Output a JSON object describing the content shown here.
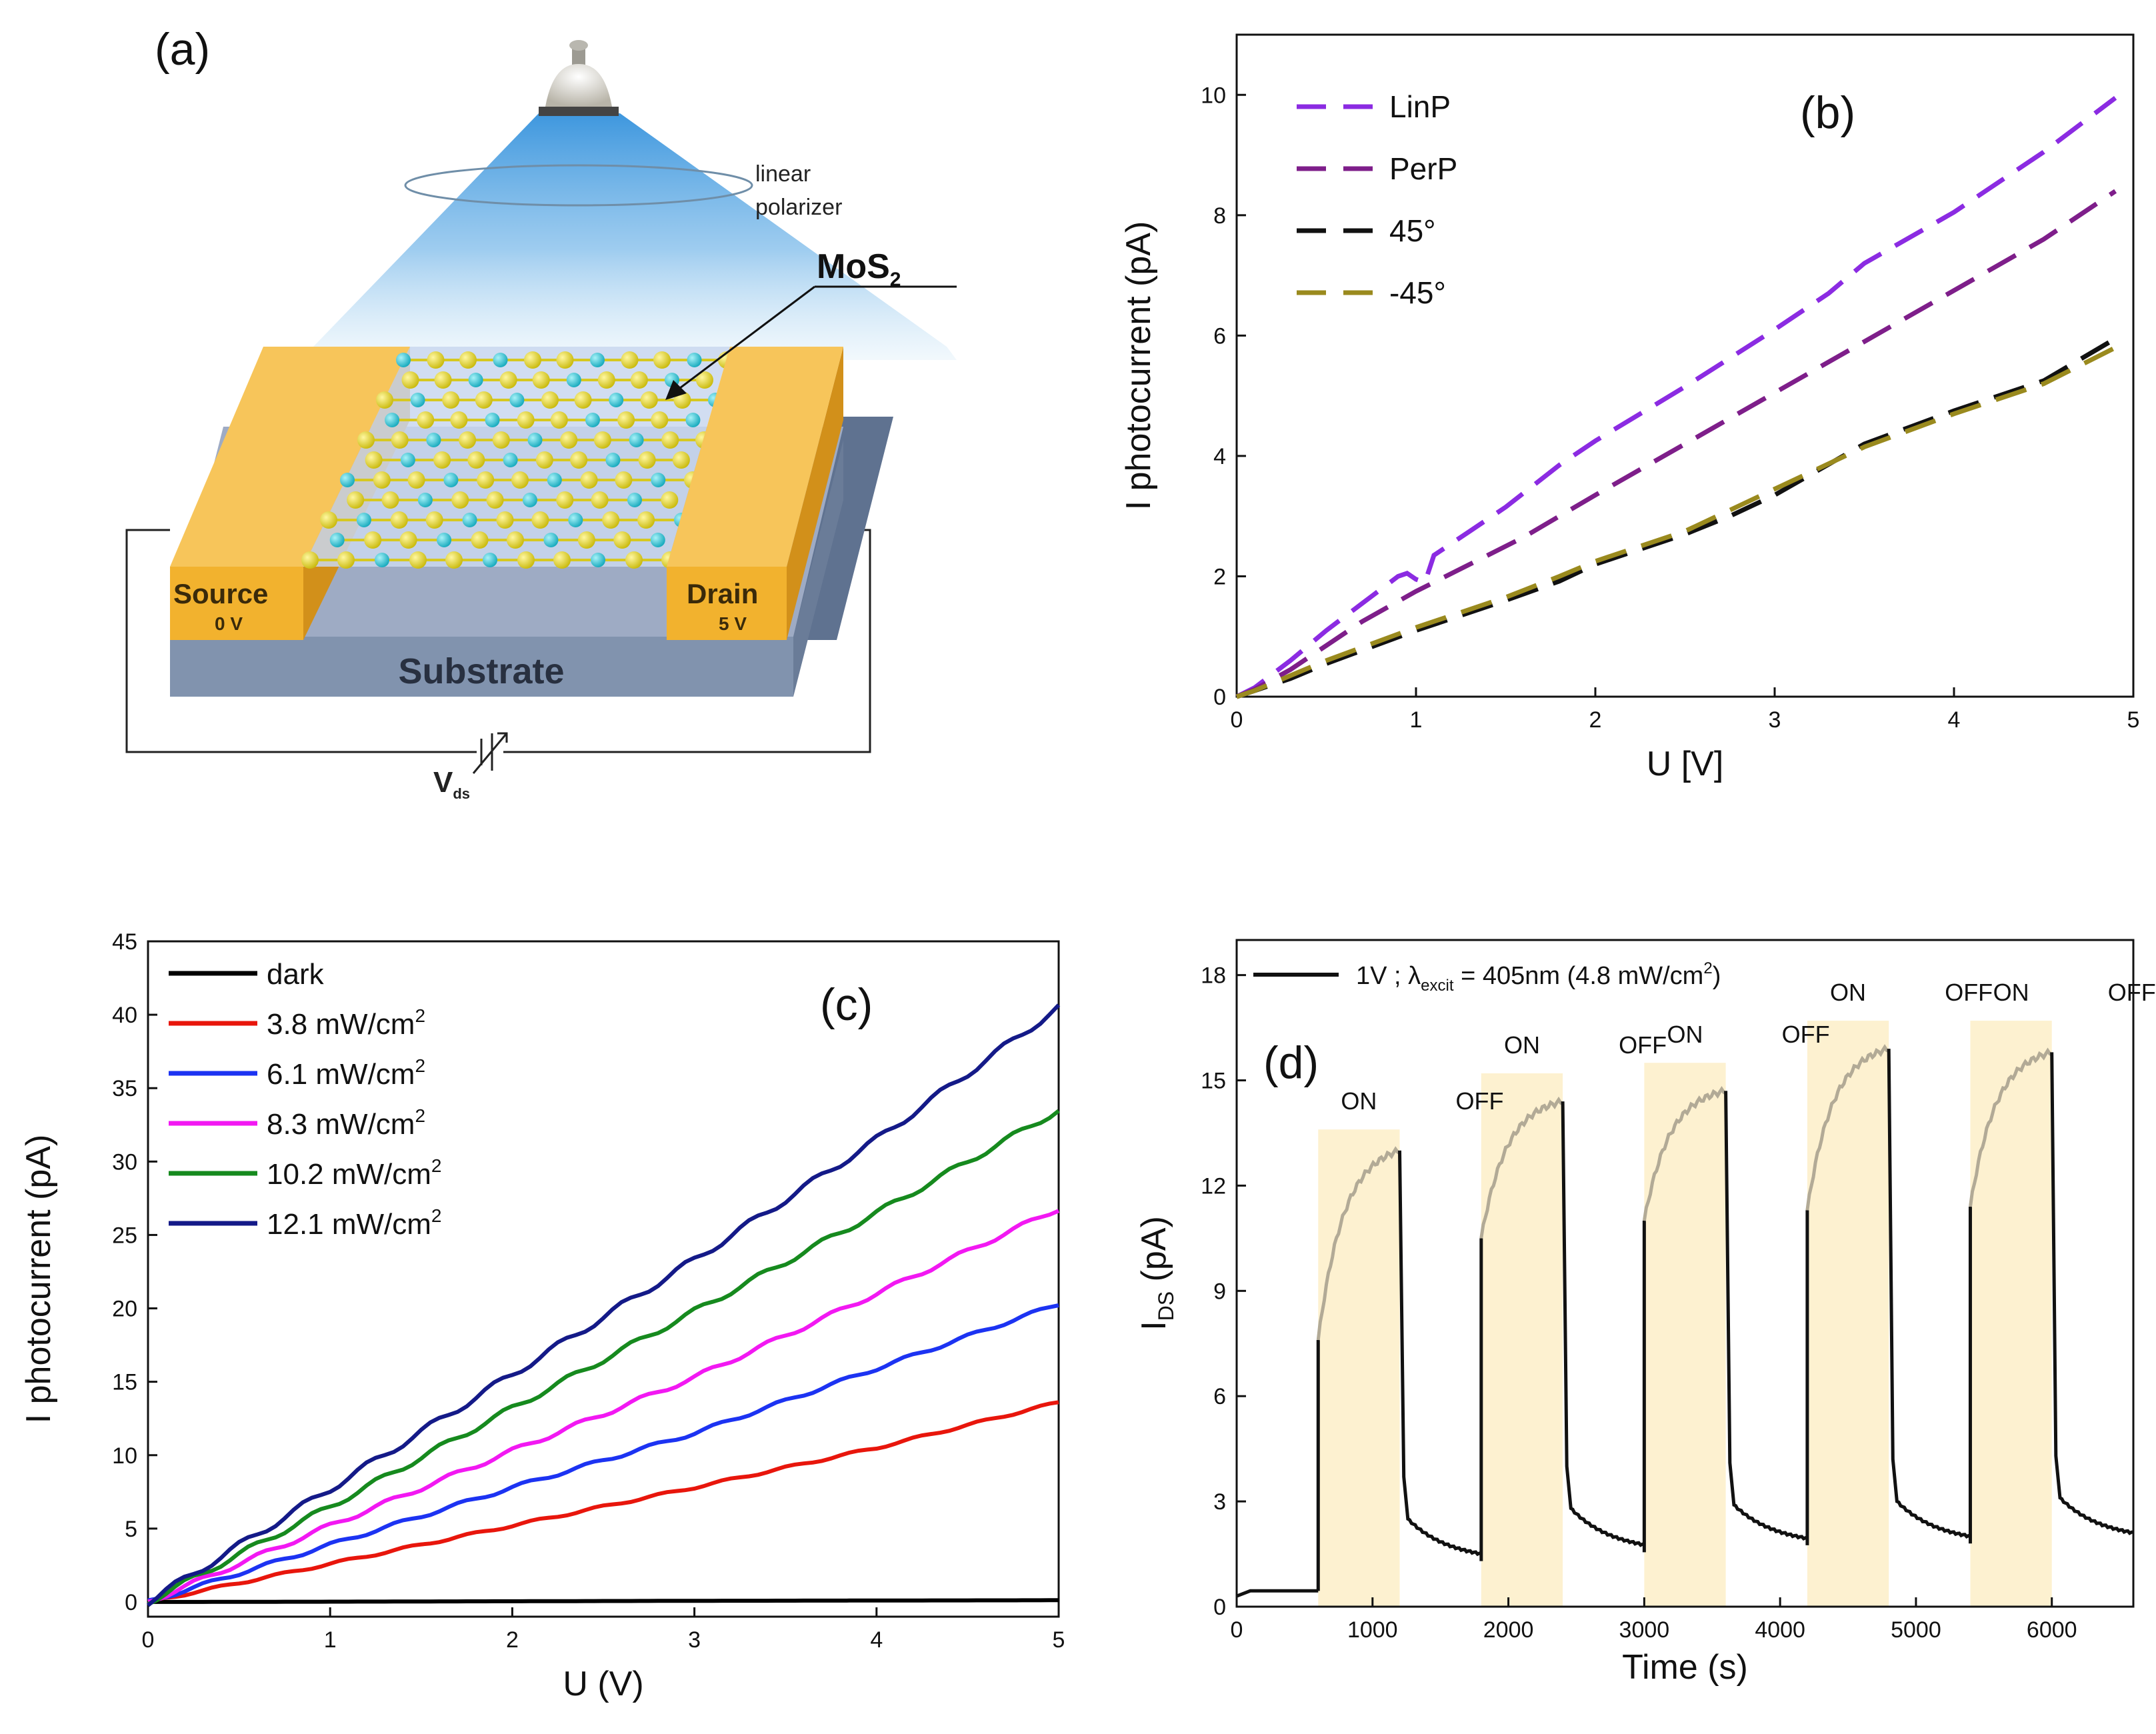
{
  "figure": {
    "panel_labels": [
      "(a)",
      "(b)",
      "(c)",
      "(d)"
    ]
  },
  "schematic": {
    "label_polarizer": [
      "linear",
      "polarizer"
    ],
    "label_material": "MoS",
    "label_material_sub": "2",
    "source_label": "Source",
    "source_voltage": "0 V",
    "drain_label": "Drain",
    "drain_voltage": "5 V",
    "substrate_label": "Substrate",
    "vds_label": "V",
    "vds_sub": "ds",
    "colors": {
      "gold": "#F2B22E",
      "gold_dark": "#D2901A",
      "substrate": "#8193AE",
      "sulfur": "#E2D513",
      "molybdenum": "#27C4D6",
      "light": "#3FA0E0"
    }
  },
  "chart_data": [
    {
      "panel": "(b)",
      "type": "line",
      "style": "dashed",
      "xlabel": "U [V]",
      "ylabel": "I photocurrent (pA)",
      "xlim": [
        0,
        5
      ],
      "ylim": [
        0,
        11
      ],
      "xticks": [
        0,
        1,
        2,
        3,
        4,
        5
      ],
      "yticks": [
        0,
        2,
        4,
        6,
        8,
        10
      ],
      "legend": "top-left",
      "series": [
        {
          "name": "LinP",
          "color": "#8B2BE2",
          "x": [
            0,
            0.1,
            0.3,
            0.5,
            0.7,
            0.9,
            0.95,
            1.0,
            1.05,
            1.1,
            1.3,
            1.5,
            1.8,
            2.0,
            2.5,
            3.0,
            3.3,
            3.5,
            4.0,
            4.5,
            4.9
          ],
          "y": [
            0,
            0.15,
            0.6,
            1.1,
            1.55,
            2.0,
            2.05,
            1.95,
            1.9,
            2.35,
            2.75,
            3.15,
            3.85,
            4.25,
            5.15,
            6.1,
            6.7,
            7.2,
            8.05,
            9.05,
            9.95
          ]
        },
        {
          "name": "PerP",
          "color": "#7E1E8A",
          "x": [
            0,
            0.1,
            0.3,
            0.5,
            0.7,
            1.0,
            1.3,
            1.6,
            2.0,
            2.5,
            3.0,
            3.5,
            4.0,
            4.5,
            4.9
          ],
          "y": [
            0,
            0.12,
            0.45,
            0.85,
            1.25,
            1.75,
            2.2,
            2.65,
            3.35,
            4.2,
            5.05,
            5.9,
            6.75,
            7.6,
            8.4
          ]
        },
        {
          "name": "45°",
          "color": "#111111",
          "x": [
            0,
            0.1,
            0.3,
            0.5,
            1.0,
            1.5,
            1.8,
            2.0,
            2.5,
            2.75,
            3.0,
            3.5,
            4.0,
            4.5,
            4.9
          ],
          "y": [
            0,
            0.1,
            0.3,
            0.55,
            1.1,
            1.6,
            1.92,
            2.2,
            2.7,
            3.0,
            3.35,
            4.2,
            4.75,
            5.25,
            5.95
          ]
        },
        {
          "name": "-45°",
          "color": "#9A8A1E",
          "x": [
            0,
            0.1,
            0.3,
            0.5,
            1.0,
            1.5,
            1.8,
            2.0,
            2.5,
            2.75,
            3.0,
            3.5,
            4.0,
            4.5,
            4.9
          ],
          "y": [
            0,
            0.1,
            0.35,
            0.6,
            1.15,
            1.65,
            2.0,
            2.25,
            2.75,
            3.1,
            3.45,
            4.15,
            4.7,
            5.2,
            5.8
          ]
        }
      ]
    },
    {
      "panel": "(c)",
      "type": "line",
      "style": "solid",
      "xlabel": "U (V)",
      "ylabel": "I photocurrent (pA)",
      "xlim": [
        0,
        5
      ],
      "ylim": [
        -1,
        45
      ],
      "xticks": [
        0,
        1,
        2,
        3,
        4,
        5
      ],
      "yticks": [
        0,
        5,
        10,
        15,
        20,
        25,
        30,
        35,
        40,
        45
      ],
      "legend": "top-left",
      "series": [
        {
          "name": "dark",
          "color": "#000000",
          "x": [
            0,
            1,
            2,
            3,
            4,
            5
          ],
          "y": [
            0,
            0.02,
            0.05,
            0.08,
            0.1,
            0.12
          ]
        },
        {
          "name": "3.8 mW/cm",
          "unit_exp": "2",
          "color": "#E8160C",
          "x": [
            0,
            1,
            2,
            3,
            4,
            5
          ],
          "y": [
            0,
            2.6,
            5.2,
            7.8,
            10.5,
            13.6
          ]
        },
        {
          "name": "6.1 mW/cm",
          "unit_exp": "2",
          "color": "#1C33F2",
          "x": [
            0,
            1,
            2,
            3,
            4,
            5
          ],
          "y": [
            0,
            3.9,
            7.8,
            11.5,
            15.9,
            20.3
          ]
        },
        {
          "name": "8.3 mW/cm",
          "unit_exp": "2",
          "color": "#F218F2",
          "x": [
            0,
            1,
            2,
            3,
            4,
            5
          ],
          "y": [
            0,
            5.2,
            10.3,
            15.3,
            21.0,
            26.8
          ]
        },
        {
          "name": "10.2 mW/cm",
          "unit_exp": "2",
          "color": "#168A1E",
          "x": [
            0,
            1,
            2,
            3,
            4,
            5
          ],
          "y": [
            0,
            6.5,
            13.2,
            19.8,
            26.5,
            33.5
          ]
        },
        {
          "name": "12.1 mW/cm",
          "unit_exp": "2",
          "color": "#141A88",
          "x": [
            0,
            1,
            2,
            3,
            4,
            5
          ],
          "y": [
            0,
            7.7,
            15.5,
            23.3,
            31.5,
            40.5
          ]
        }
      ]
    },
    {
      "panel": "(d)",
      "type": "line",
      "style": "solid",
      "xlabel": "Time (s)",
      "ylabel": "I",
      "ylabel_sub": "DS",
      "ylabel_unit": " (pA)",
      "xlim": [
        0,
        6600
      ],
      "ylim": [
        0,
        19
      ],
      "xticks": [
        0,
        1000,
        2000,
        3000,
        4000,
        5000,
        6000
      ],
      "yticks": [
        0,
        3,
        6,
        9,
        12,
        15,
        18
      ],
      "legend_prefix": "1V  ; λ",
      "legend_sub": "excit",
      "legend_mid": " = 405nm (4.8 mW/cm",
      "legend_sup": "2",
      "legend_end": ")",
      "line_color": "#111111",
      "on_line_color": "#B2AA96",
      "on_fill": "#FDF1D0",
      "on_label": "ON",
      "off_label": "OFF",
      "baseline": {
        "t": [
          0,
          100,
          300,
          600
        ],
        "i": [
          0.3,
          0.45,
          0.45,
          0.45
        ]
      },
      "cycles": [
        {
          "on_start": 600,
          "on_end": 1200,
          "jump_to": 7.6,
          "peak": 13.0,
          "after_off": 2.5,
          "end_value": 1.3,
          "end_time": 1800,
          "on_box_top": 13.6
        },
        {
          "on_start": 1800,
          "on_end": 2400,
          "jump_to": 10.5,
          "peak": 14.4,
          "after_off": 2.8,
          "end_value": 1.55,
          "end_time": 3000,
          "on_box_top": 15.2
        },
        {
          "on_start": 3000,
          "on_end": 3600,
          "jump_to": 11.0,
          "peak": 14.7,
          "after_off": 2.9,
          "end_value": 1.75,
          "end_time": 4200,
          "on_box_top": 15.5
        },
        {
          "on_start": 4200,
          "on_end": 4800,
          "jump_to": 11.3,
          "peak": 15.9,
          "after_off": 3.0,
          "end_value": 1.8,
          "end_time": 5400,
          "on_box_top": 16.7
        },
        {
          "on_start": 5400,
          "on_end": 6000,
          "jump_to": 11.4,
          "peak": 15.8,
          "after_off": 3.1,
          "end_value": 1.9,
          "end_time": 6600,
          "on_box_top": 16.7
        }
      ]
    }
  ]
}
